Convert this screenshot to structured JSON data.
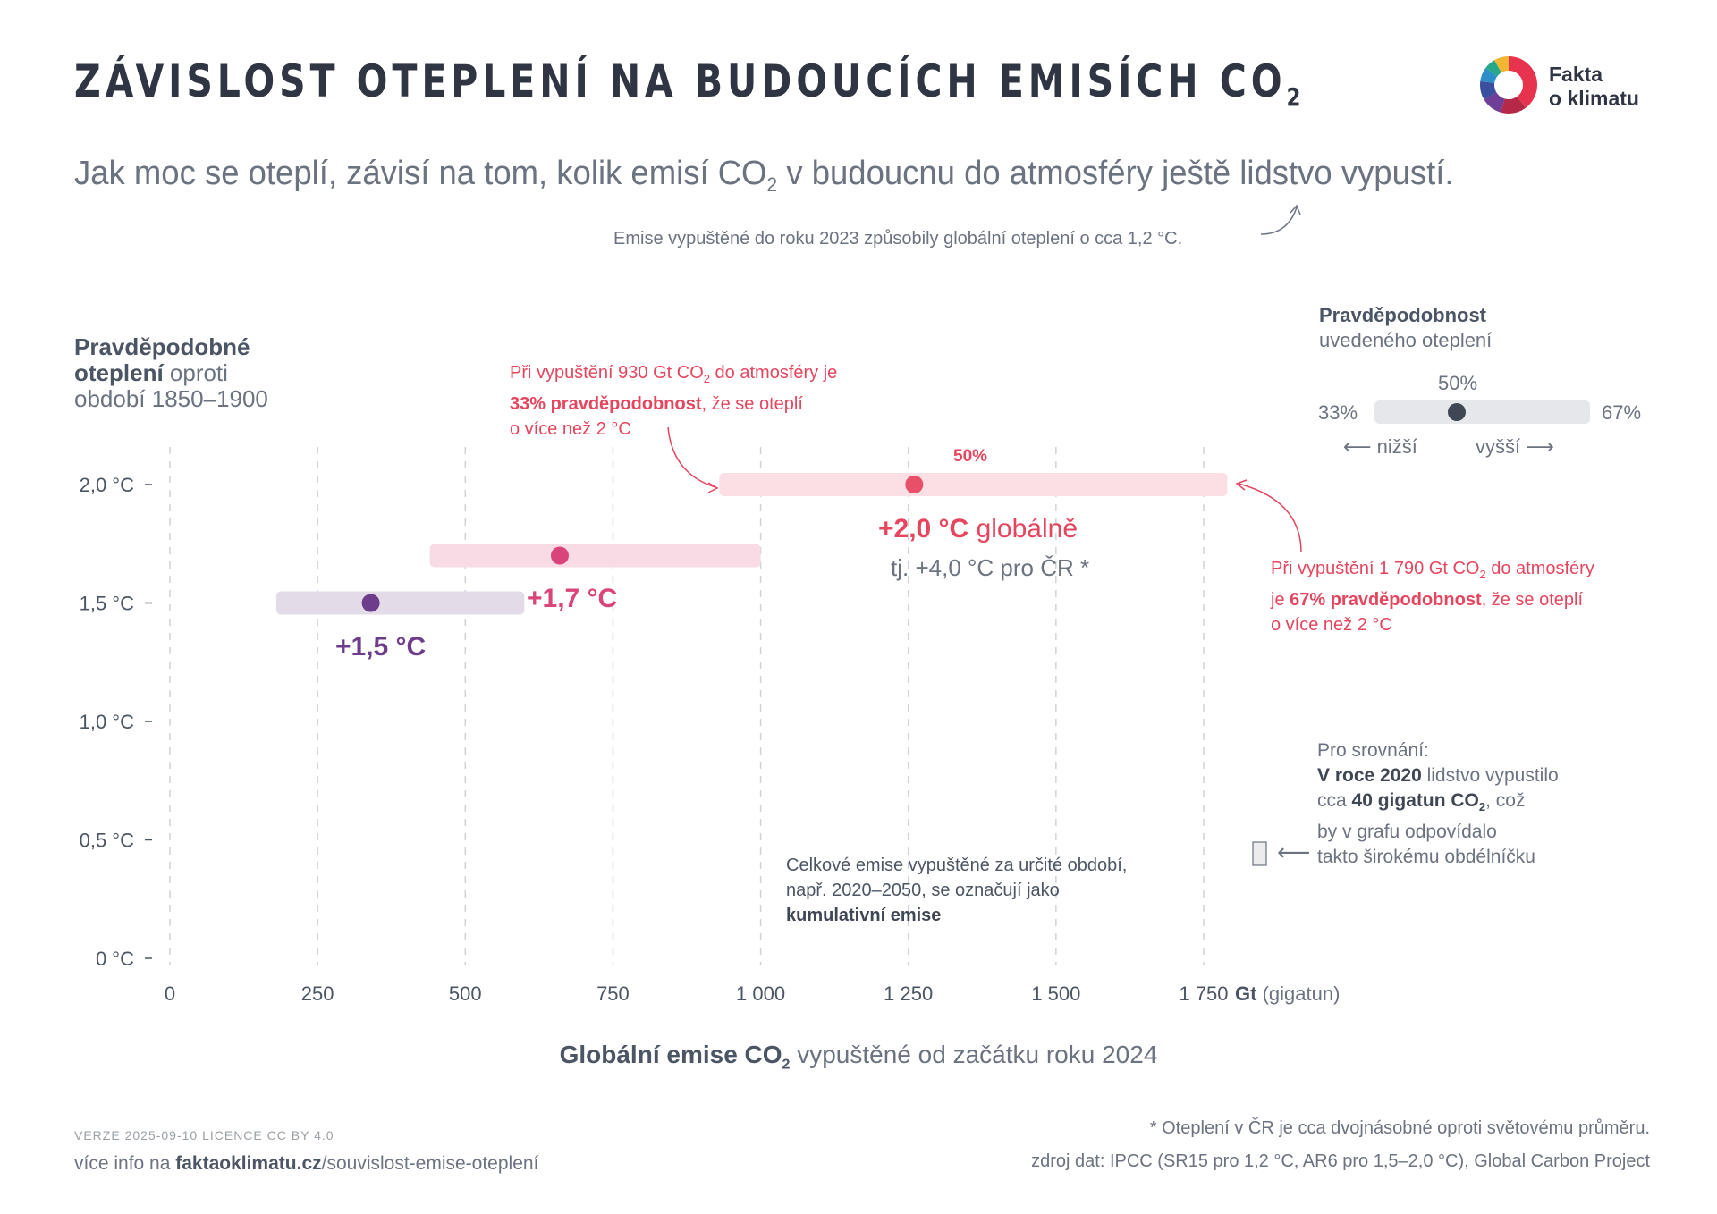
{
  "header": {
    "title": "ZÁVISLOST OTEPLENÍ NA BUDOUCÍCH EMISÍCH CO",
    "title_sub": "2",
    "subtitle_a": "Jak moc se oteplí, závisí na tom, kolik emisí CO",
    "subtitle_sub": "2",
    "subtitle_b": " v budoucnu do atmosféry ještě lidstvo vypustí.",
    "note": "Emise vypuštěné do roku 2023 způsobily globální oteplení o cca 1,2 °C."
  },
  "logo": {
    "line1": "Fakta",
    "line2": "o klimatu",
    "icon": "donut-logo-icon"
  },
  "y_heading": {
    "bold1": "Pravděpodobné",
    "bold2": "oteplení",
    "rest1": " oproti",
    "rest2": "období 1850–1900"
  },
  "annotations": {
    "low_a": "Při vypuštění 930 Gt CO",
    "low_sub": "2",
    "low_b": " do atmosféry je",
    "low_bold": "33% pravděpodobnost",
    "low_c": ", že se oteplí",
    "low_d": "o více než 2 °C",
    "high_a": "Při vypuštění 1 790 Gt CO",
    "high_sub": "2",
    "high_b": " do atmosféry",
    "high_c": "je ",
    "high_bold": "67% pravděpodobnost",
    "high_d": ", že se oteplí",
    "high_e": "o více než 2 °C",
    "fifty": "50%",
    "label_20_bold": "+2,0 °C",
    "label_20_rest": " globálně",
    "label_20_cr": "tj. +4,0 °C pro ČR *",
    "label_17": "+1,7 °C",
    "label_15": "+1,5 °C",
    "cumulative_1": "Celkové emise vypuštěné za určité období,",
    "cumulative_2": "např. 2020–2050, se označují jako",
    "cumulative_3": "kumulativní emise"
  },
  "legend": {
    "title_bold": "Pravděpodobnost",
    "title_rest": "uvedeného oteplení",
    "mid": "50%",
    "low": "33%",
    "high": "67%",
    "lower": "⟵  nižší",
    "higher": "vyšší  ⟶"
  },
  "comparison": {
    "l1": "Pro srovnání:",
    "l2_bold": "V roce 2020",
    "l2_rest": " lidstvo vypustilo",
    "l3_a": "cca ",
    "l3_bold": "40 gigatun CO",
    "l3_sub": "2",
    "l3_rest": ", což",
    "l4": "by v grafu odpovídalo",
    "l5": "takto širokému obdélníčku",
    "arrow": "⟵"
  },
  "x_title": {
    "bold": "Globální emise CO",
    "sub": "2",
    "rest": " vypuštěné od začátku roku 2024"
  },
  "footer": {
    "version": "VERZE 2025-09-10    LICENCE CC BY 4.0",
    "more_a": "více info na ",
    "more_bold": "faktaoklimatu.cz",
    "more_b": "/souvislost-emise-oteplení",
    "footnote": "* Oteplení v ČR je cca dvojnásobné oproti světovému průměru.",
    "source": "zdroj dat: IPCC (SR15 pro 1,2 °C, AR6 pro 1,5–2,0 °C), Global Carbon Project"
  },
  "chart_data": {
    "type": "range-dot",
    "x_unit": "Gt (gigatun)",
    "xlim": [
      0,
      1750
    ],
    "ylim": [
      0,
      2.0
    ],
    "x_ticks": [
      0,
      250,
      500,
      750,
      1000,
      1250,
      1500,
      1750
    ],
    "x_tick_labels": [
      "0",
      "250",
      "500",
      "750",
      "1 000",
      "1 250",
      "1 500",
      "1 750"
    ],
    "y_ticks": [
      0,
      0.5,
      1.0,
      1.5,
      2.0
    ],
    "y_tick_labels": [
      "0 °C",
      "0,5 °C",
      "1,0 °C",
      "1,5 °C",
      "2,0 °C"
    ],
    "grid": "vertical dashed",
    "series": [
      {
        "name": "+1,5 °C",
        "warming": 1.5,
        "low_33": 180,
        "mid_50": 340,
        "high_67": 600,
        "color": "#6d3d8c",
        "band": "#e3dbe8"
      },
      {
        "name": "+1,7 °C",
        "warming": 1.7,
        "low_33": 440,
        "mid_50": 660,
        "high_67": 1000,
        "color": "#d9457a",
        "band": "#f8dbe4"
      },
      {
        "name": "+2,0 °C",
        "warming": 2.0,
        "low_33": 930,
        "mid_50": 1260,
        "high_67": 1790,
        "color": "#e8506a",
        "band": "#fbdfe5"
      }
    ],
    "comparison_2020_gt": 40
  },
  "colors": {
    "dark": "#2f3542",
    "red": "#e6455e",
    "pink": "#d9457a",
    "purple": "#6d3d8c",
    "grid": "#cfd2d6"
  }
}
